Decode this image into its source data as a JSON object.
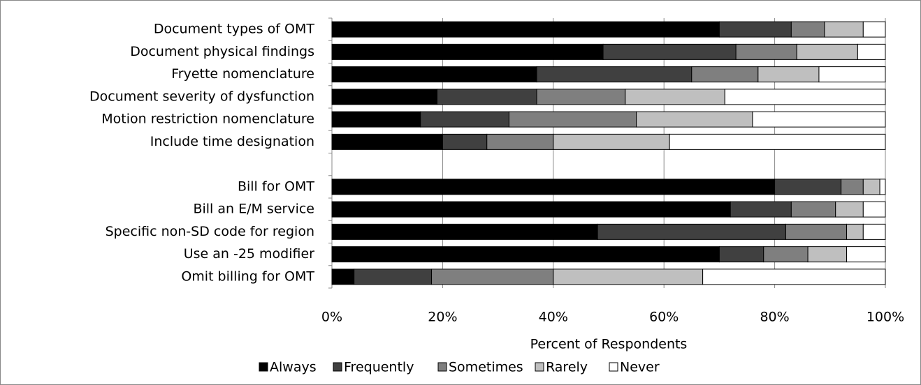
{
  "chart_data": {
    "type": "stacked_barh",
    "xlabel": "Percent of Respondents",
    "categories": [
      "Document types of OMT",
      "Document physical findings",
      "Fryette nomenclature",
      "Document severity of dysfunction",
      "Motion restriction nomenclature",
      "Include time designation",
      null,
      "Bill for OMT",
      "Bill an E/M service",
      "Specific non-SD code for region",
      "Use an -25 modifier",
      "Omit billing for OMT"
    ],
    "series": [
      {
        "name": "Always",
        "color": "#000000",
        "values": [
          70,
          49,
          37,
          19,
          16,
          20,
          null,
          80,
          72,
          48,
          70,
          4
        ]
      },
      {
        "name": "Frequently",
        "color": "#404040",
        "values": [
          13,
          24,
          28,
          18,
          16,
          8,
          null,
          12,
          11,
          34,
          8,
          14
        ]
      },
      {
        "name": "Sometimes",
        "color": "#7f7f7f",
        "values": [
          6,
          11,
          12,
          16,
          23,
          12,
          null,
          4,
          8,
          11,
          8,
          22
        ]
      },
      {
        "name": "Rarely",
        "color": "#bfbfbf",
        "values": [
          7,
          11,
          11,
          18,
          21,
          21,
          null,
          3,
          5,
          3,
          7,
          27
        ]
      },
      {
        "name": "Never",
        "color": "#ffffff",
        "values": [
          4,
          5,
          12,
          29,
          24,
          39,
          null,
          1,
          4,
          4,
          7,
          33
        ]
      }
    ],
    "xlim": [
      0,
      100
    ],
    "xticks": [
      {
        "value": 0,
        "label": "0%"
      },
      {
        "value": 20,
        "label": "20%"
      },
      {
        "value": 40,
        "label": "40%"
      },
      {
        "value": 60,
        "label": "60%"
      },
      {
        "value": 80,
        "label": "80%"
      },
      {
        "value": 100,
        "label": "100%"
      }
    ],
    "grid": true,
    "legend": "bottom"
  }
}
